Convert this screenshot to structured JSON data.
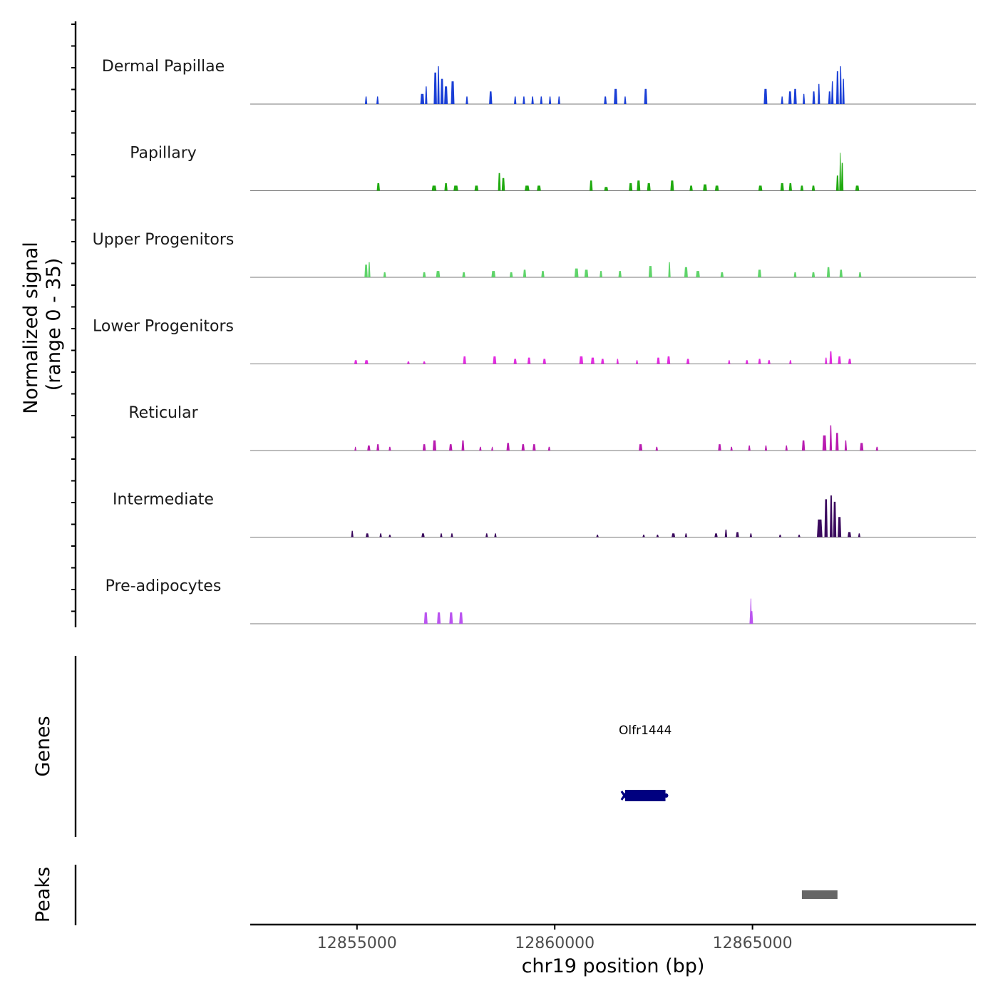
{
  "chart_data": {
    "type": "area",
    "title": "",
    "ylabel_line1": "Normalized signal",
    "ylabel_line2": "(range 0 - 35)",
    "xlabel": "chr19 position (bp)",
    "chromosome": "chr19",
    "xlim": [
      12852300,
      12870650
    ],
    "ylim": [
      0,
      35
    ],
    "x_ticks": [
      12855000,
      12860000,
      12865000
    ],
    "x_tick_labels": [
      "12855000",
      "12860000",
      "12865000"
    ],
    "tracks": [
      {
        "name": "Dermal Papillae",
        "color": "#1a3fd6",
        "peaks": [
          [
            12855230,
            60,
            6
          ],
          [
            12855520,
            60,
            6
          ],
          [
            12856650,
            100,
            8
          ],
          [
            12856750,
            60,
            14
          ],
          [
            12856980,
            80,
            25
          ],
          [
            12857060,
            60,
            30
          ],
          [
            12857150,
            80,
            20
          ],
          [
            12857250,
            90,
            14
          ],
          [
            12857420,
            90,
            18
          ],
          [
            12857780,
            60,
            6
          ],
          [
            12858380,
            80,
            10
          ],
          [
            12859000,
            60,
            6
          ],
          [
            12859220,
            60,
            6
          ],
          [
            12859440,
            60,
            6
          ],
          [
            12859660,
            60,
            6
          ],
          [
            12859880,
            60,
            6
          ],
          [
            12860110,
            60,
            6
          ],
          [
            12861280,
            70,
            6
          ],
          [
            12861540,
            90,
            12
          ],
          [
            12861780,
            60,
            6
          ],
          [
            12862300,
            80,
            12
          ],
          [
            12865330,
            90,
            12
          ],
          [
            12865750,
            60,
            6
          ],
          [
            12865950,
            80,
            10
          ],
          [
            12866080,
            80,
            12
          ],
          [
            12866300,
            60,
            8
          ],
          [
            12866550,
            70,
            10
          ],
          [
            12866680,
            60,
            16
          ],
          [
            12866950,
            70,
            10
          ],
          [
            12867020,
            60,
            18
          ],
          [
            12867150,
            70,
            26
          ],
          [
            12867230,
            60,
            30
          ],
          [
            12867300,
            60,
            20
          ]
        ]
      },
      {
        "name": "Papillary",
        "color": "#1faa0f",
        "peaks": [
          [
            12855540,
            80,
            6
          ],
          [
            12856950,
            120,
            4
          ],
          [
            12857250,
            80,
            6
          ],
          [
            12857500,
            120,
            4
          ],
          [
            12858020,
            100,
            4
          ],
          [
            12858600,
            70,
            14
          ],
          [
            12858700,
            80,
            10
          ],
          [
            12859300,
            120,
            4
          ],
          [
            12859600,
            100,
            4
          ],
          [
            12860920,
            80,
            8
          ],
          [
            12861300,
            100,
            3
          ],
          [
            12861920,
            90,
            6
          ],
          [
            12862120,
            90,
            8
          ],
          [
            12862380,
            90,
            6
          ],
          [
            12862970,
            90,
            8
          ],
          [
            12863450,
            80,
            4
          ],
          [
            12863800,
            100,
            5
          ],
          [
            12864100,
            100,
            4
          ],
          [
            12865200,
            100,
            4
          ],
          [
            12865750,
            90,
            6
          ],
          [
            12865960,
            80,
            6
          ],
          [
            12866250,
            80,
            4
          ],
          [
            12866540,
            80,
            4
          ],
          [
            12867220,
            50,
            30
          ],
          [
            12867270,
            60,
            22
          ],
          [
            12867150,
            70,
            12
          ],
          [
            12867650,
            100,
            4
          ]
        ]
      },
      {
        "name": "Upper Progenitors",
        "color": "#5fd46a",
        "peaks": [
          [
            12855230,
            80,
            10
          ],
          [
            12855310,
            60,
            12
          ],
          [
            12855700,
            70,
            4
          ],
          [
            12856700,
            80,
            4
          ],
          [
            12857050,
            100,
            5
          ],
          [
            12857700,
            80,
            4
          ],
          [
            12858450,
            100,
            5
          ],
          [
            12858900,
            80,
            4
          ],
          [
            12859240,
            80,
            6
          ],
          [
            12859700,
            80,
            5
          ],
          [
            12860550,
            100,
            7
          ],
          [
            12860800,
            100,
            6
          ],
          [
            12861170,
            70,
            5
          ],
          [
            12861650,
            80,
            5
          ],
          [
            12862420,
            90,
            9
          ],
          [
            12862900,
            60,
            12
          ],
          [
            12863320,
            90,
            8
          ],
          [
            12863620,
            100,
            5
          ],
          [
            12864230,
            80,
            4
          ],
          [
            12865180,
            90,
            6
          ],
          [
            12866080,
            70,
            4
          ],
          [
            12866540,
            80,
            4
          ],
          [
            12866920,
            80,
            8
          ],
          [
            12867240,
            80,
            6
          ],
          [
            12867720,
            70,
            4
          ]
        ]
      },
      {
        "name": "Lower Progenitors",
        "color": "#e22ce0",
        "peaks": [
          [
            12854970,
            80,
            3
          ],
          [
            12855240,
            90,
            3
          ],
          [
            12856300,
            70,
            2
          ],
          [
            12856700,
            70,
            2
          ],
          [
            12857720,
            80,
            6
          ],
          [
            12858480,
            90,
            6
          ],
          [
            12859000,
            80,
            4
          ],
          [
            12859350,
            80,
            5
          ],
          [
            12859740,
            80,
            4
          ],
          [
            12860670,
            100,
            6
          ],
          [
            12860960,
            90,
            5
          ],
          [
            12861210,
            80,
            4
          ],
          [
            12861590,
            60,
            4
          ],
          [
            12862080,
            60,
            3
          ],
          [
            12862620,
            80,
            5
          ],
          [
            12862880,
            80,
            6
          ],
          [
            12863370,
            80,
            4
          ],
          [
            12864410,
            60,
            3
          ],
          [
            12864860,
            70,
            3
          ],
          [
            12865180,
            70,
            4
          ],
          [
            12865420,
            70,
            3
          ],
          [
            12865960,
            60,
            3
          ],
          [
            12866860,
            60,
            5
          ],
          [
            12866980,
            70,
            10
          ],
          [
            12867200,
            80,
            6
          ],
          [
            12867460,
            80,
            4
          ]
        ]
      },
      {
        "name": "Reticular",
        "color": "#b81bb0",
        "peaks": [
          [
            12854960,
            50,
            3
          ],
          [
            12855300,
            80,
            4
          ],
          [
            12855530,
            70,
            5
          ],
          [
            12855830,
            60,
            3
          ],
          [
            12856700,
            80,
            5
          ],
          [
            12856960,
            90,
            8
          ],
          [
            12857370,
            80,
            5
          ],
          [
            12857680,
            70,
            8
          ],
          [
            12858120,
            60,
            3
          ],
          [
            12858420,
            50,
            3
          ],
          [
            12858820,
            80,
            6
          ],
          [
            12859200,
            80,
            5
          ],
          [
            12859480,
            80,
            5
          ],
          [
            12859860,
            60,
            3
          ],
          [
            12862170,
            90,
            5
          ],
          [
            12862580,
            60,
            3
          ],
          [
            12864170,
            80,
            5
          ],
          [
            12864470,
            60,
            3
          ],
          [
            12864920,
            60,
            4
          ],
          [
            12865340,
            60,
            4
          ],
          [
            12865860,
            60,
            4
          ],
          [
            12866290,
            80,
            8
          ],
          [
            12866820,
            100,
            12
          ],
          [
            12866980,
            60,
            20
          ],
          [
            12867140,
            80,
            14
          ],
          [
            12867360,
            60,
            8
          ],
          [
            12867760,
            90,
            6
          ],
          [
            12868150,
            60,
            3
          ]
        ]
      },
      {
        "name": "Intermediate",
        "color": "#3b0a5e",
        "peaks": [
          [
            12854880,
            60,
            5
          ],
          [
            12855260,
            80,
            3
          ],
          [
            12855600,
            60,
            3
          ],
          [
            12855830,
            60,
            2
          ],
          [
            12856670,
            80,
            3
          ],
          [
            12857130,
            60,
            3
          ],
          [
            12857400,
            60,
            3
          ],
          [
            12858280,
            60,
            3
          ],
          [
            12858500,
            60,
            3
          ],
          [
            12861080,
            60,
            2
          ],
          [
            12862250,
            60,
            2
          ],
          [
            12862600,
            60,
            2
          ],
          [
            12863000,
            90,
            3
          ],
          [
            12863320,
            60,
            3
          ],
          [
            12864080,
            80,
            3
          ],
          [
            12864330,
            60,
            6
          ],
          [
            12864620,
            80,
            4
          ],
          [
            12864960,
            60,
            3
          ],
          [
            12865700,
            60,
            2
          ],
          [
            12866180,
            60,
            2
          ],
          [
            12866700,
            140,
            14
          ],
          [
            12866860,
            80,
            30
          ],
          [
            12866990,
            70,
            33
          ],
          [
            12867080,
            80,
            28
          ],
          [
            12867200,
            90,
            16
          ],
          [
            12867450,
            90,
            4
          ],
          [
            12867700,
            60,
            3
          ]
        ]
      },
      {
        "name": "Pre-adipocytes",
        "color": "#bb55f0",
        "peaks": [
          [
            12856740,
            90,
            9
          ],
          [
            12857070,
            90,
            9
          ],
          [
            12857380,
            90,
            9
          ],
          [
            12857630,
            90,
            9
          ],
          [
            12864960,
            50,
            20
          ],
          [
            12864970,
            90,
            10
          ]
        ]
      }
    ],
    "genes": [
      {
        "name": "Olfr1444",
        "start": 12861780,
        "end": 12862800,
        "strand": "-",
        "color": "#000080"
      }
    ],
    "peaks_track": [
      {
        "start": 12866250,
        "end": 12867150,
        "color": "#666666"
      }
    ],
    "panels": {
      "genes_label": "Genes",
      "peaks_label": "Peaks"
    }
  }
}
